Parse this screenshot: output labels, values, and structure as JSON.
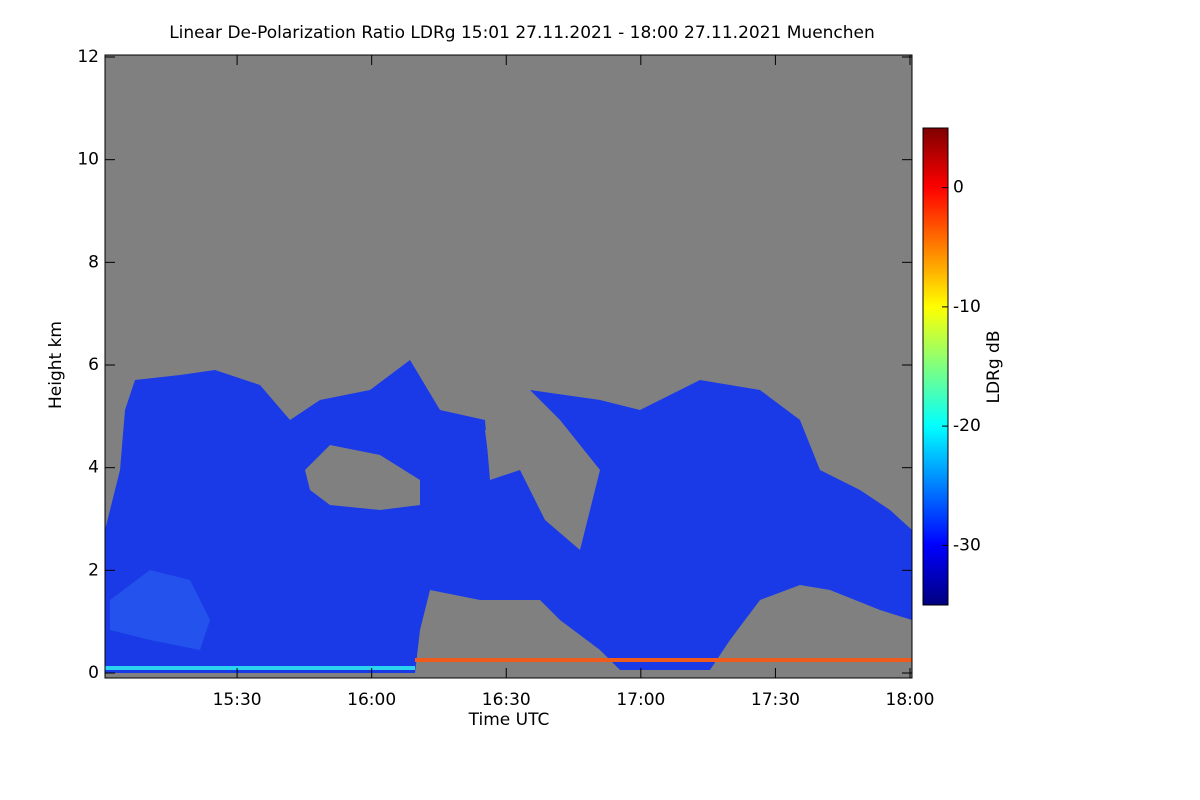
{
  "chart_data": {
    "type": "heatmap",
    "title": "Linear De-Polarization Ratio LDRg   15:01 27.11.2021 - 18:00 27.11.2021 Muenchen",
    "x_label": "Time UTC",
    "y_label": "Height km",
    "xlim": [
      15.0167,
      18.0
    ],
    "xticks": [
      {
        "value": 15.5,
        "label": "15:30"
      },
      {
        "value": 16.0,
        "label": "16:00"
      },
      {
        "value": 16.5,
        "label": "16:30"
      },
      {
        "value": 17.0,
        "label": "17:00"
      },
      {
        "value": 17.5,
        "label": "17:30"
      },
      {
        "value": 18.0,
        "label": "18:00"
      }
    ],
    "ylim": [
      0,
      12
    ],
    "yticks": [
      0,
      2,
      4,
      6,
      8,
      10,
      12
    ],
    "colorbar_label": "LDRg dB",
    "colormap": "jet",
    "clim": [
      -35,
      5
    ],
    "cticks": [
      0,
      -10,
      -20,
      -30
    ]
  }
}
